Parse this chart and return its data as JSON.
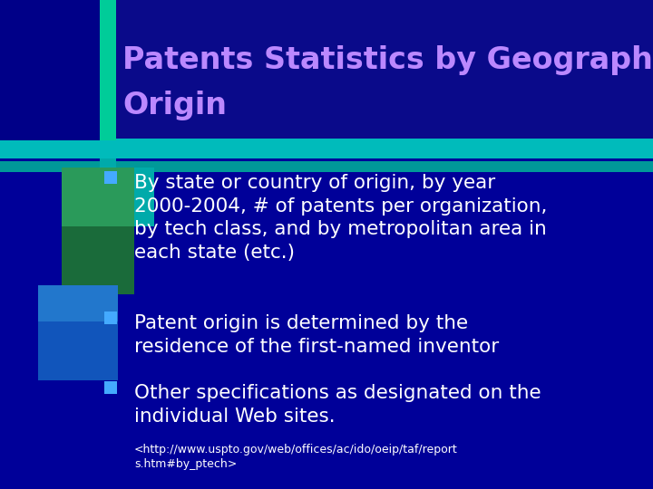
{
  "title_line1": "Patents Statistics by Geographic",
  "title_line2": "Origin",
  "title_color": "#bb88ff",
  "bg_color": "#000099",
  "header_bg_color": "#1a1a99",
  "header_teal_color": "#00aaaa",
  "header_teal2_color": "#009999",
  "green_col_color": "#00aa77",
  "bullet_color": "#44aaff",
  "bullet_text_color": "#ffffff",
  "bullets": [
    "By state or country of origin, by year\n2000-2004, # of patents per organization,\nby tech class, and by metropolitan area in\neach state (etc.)",
    "Patent origin is determined by the\nresidence of the first-named inventor",
    "Other specifications as designated on the\nindividual Web sites."
  ],
  "url_text": "<http://www.uspto.gov/web/offices/ac/ido/oeip/taf/report\ns.htm#by_ptech>",
  "fig_w": 7.2,
  "fig_h": 5.4,
  "dpi": 100
}
